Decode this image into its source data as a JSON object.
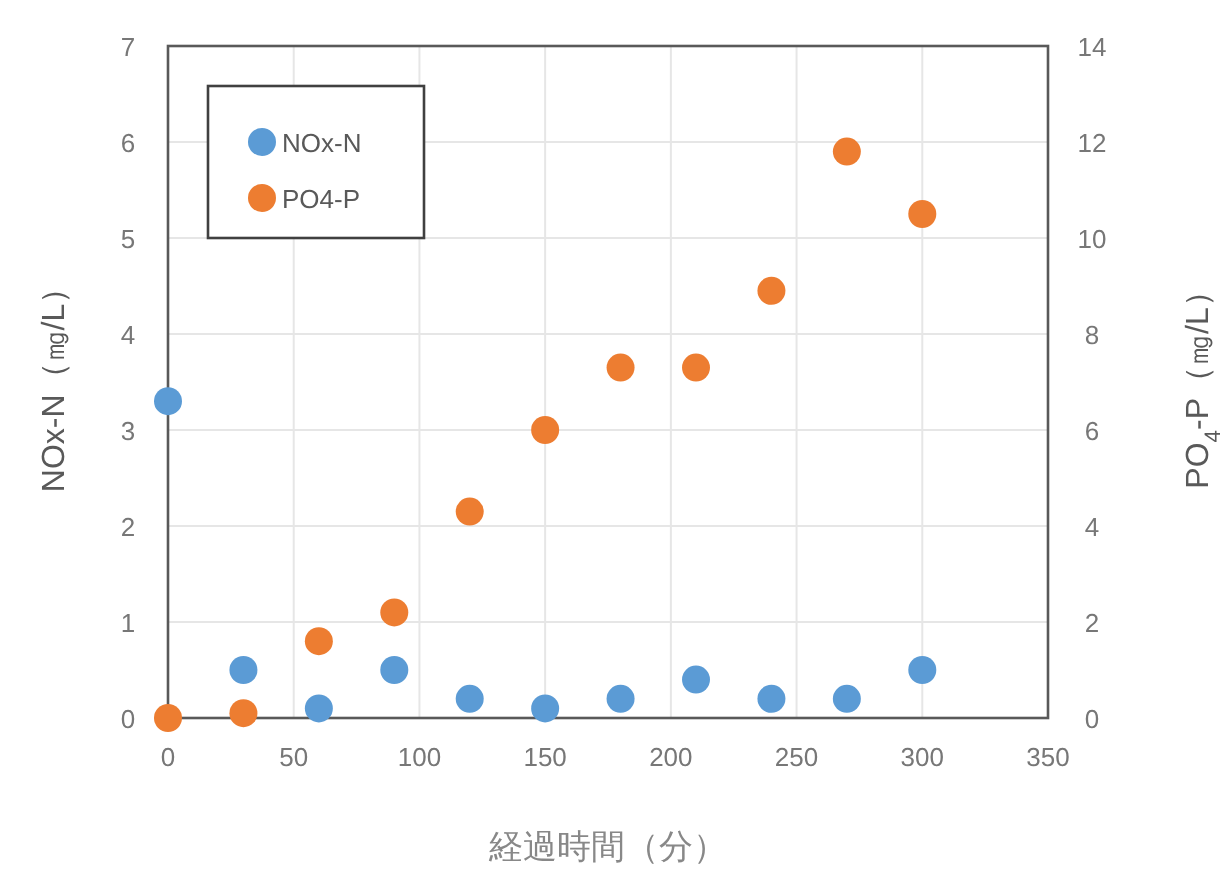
{
  "chart_data": {
    "type": "scatter",
    "xlabel": "経過時間（分）",
    "ylabel": "NOx-N（㎎/L）",
    "y2label": "PO$_{4}$-P（㎎/L）",
    "x": [
      0,
      30,
      60,
      90,
      120,
      150,
      180,
      210,
      240,
      270,
      300
    ],
    "series": [
      {
        "name": "NOx-N",
        "color": "#5b9bd5",
        "values": [
          3.3,
          0.5,
          0.1,
          0.5,
          0.2,
          0.1,
          0.2,
          0.4,
          0.2,
          0.2,
          0.5
        ]
      },
      {
        "name": "PO4-P",
        "color": "#ed7d31",
        "axis": "y2",
        "values": [
          0,
          0.1,
          1.6,
          2.2,
          4.3,
          6.0,
          7.3,
          7.3,
          8.9,
          11.8,
          10.5
        ]
      }
    ],
    "xlim": [
      0,
      350
    ],
    "xticks": [
      0,
      50,
      100,
      150,
      200,
      250,
      300,
      350
    ],
    "ylim": [
      0,
      7
    ],
    "yticks": [
      0,
      1,
      2,
      3,
      4,
      5,
      6,
      7
    ],
    "y2lim": [
      0,
      14
    ],
    "y2ticks": [
      0,
      2,
      4,
      6,
      8,
      10,
      12,
      14
    ],
    "grid": true,
    "legend": "top left",
    "marker": "circle"
  }
}
